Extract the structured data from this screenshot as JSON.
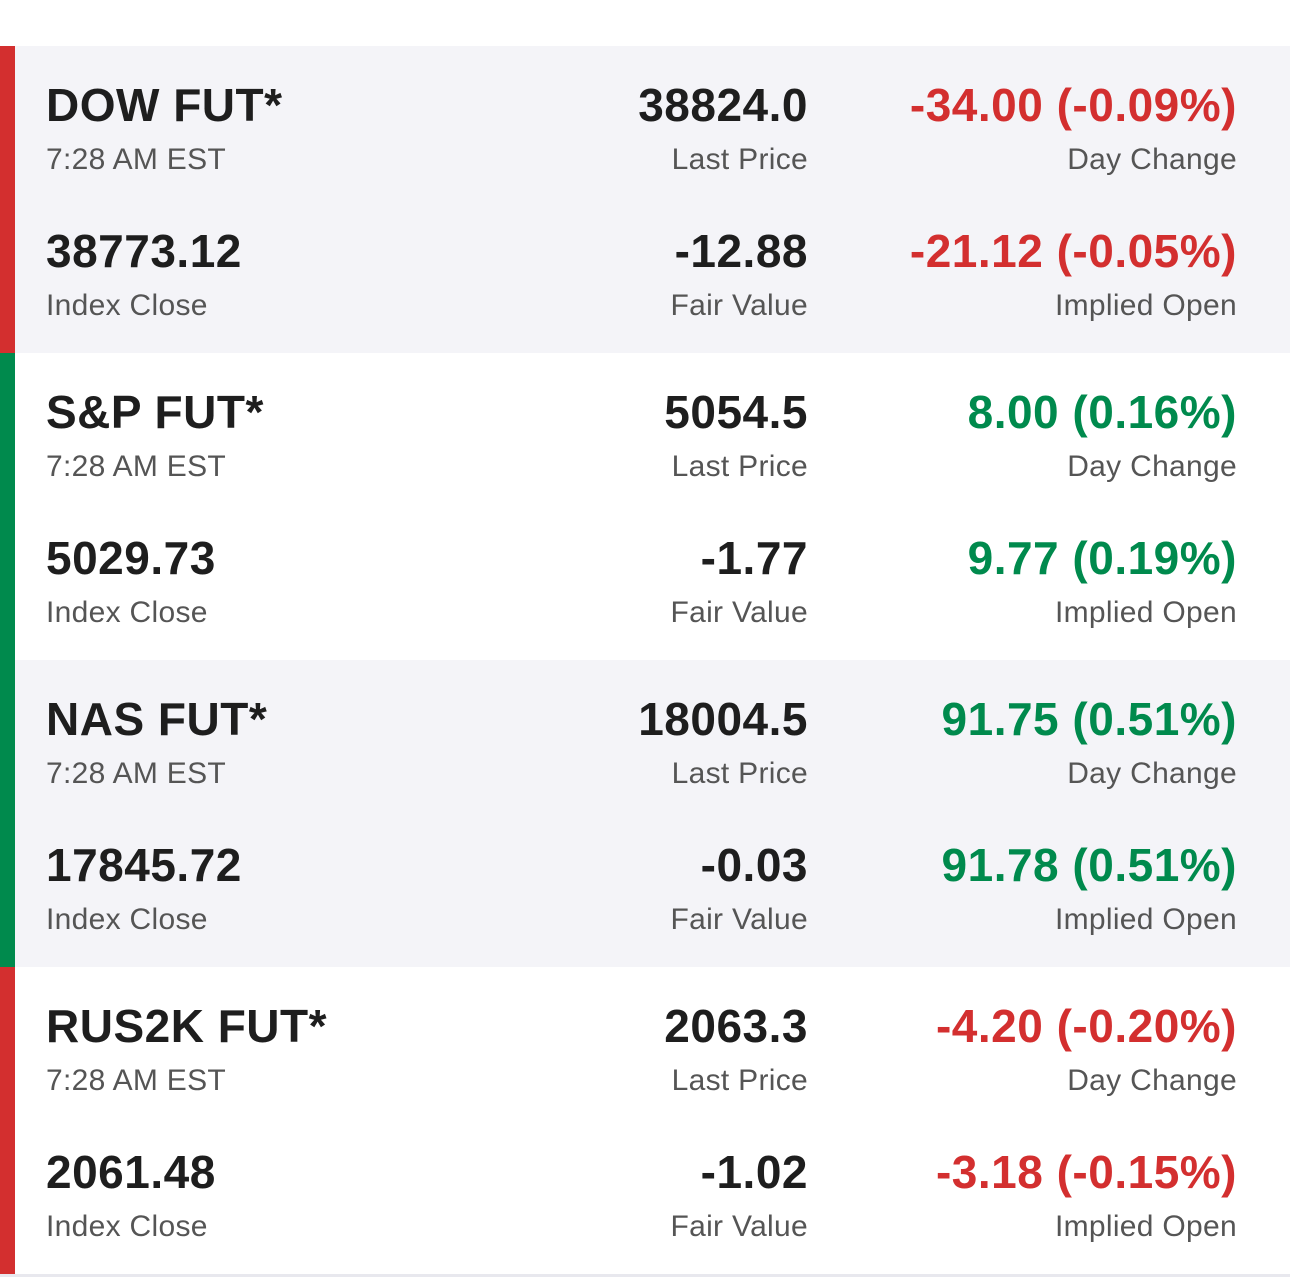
{
  "colors": {
    "negative": "#d32f2f",
    "positive": "#008a4d",
    "shaded_bg": "#f4f4f8"
  },
  "futures": [
    {
      "name": "DOW FUT*",
      "time": "7:28 AM EST",
      "last_price": "38824.0",
      "last_price_label": "Last Price",
      "day_change": "-34.00 (-0.09%)",
      "day_change_label": "Day Change",
      "index_close": "38773.12",
      "index_close_label": "Index Close",
      "fair_value": "-12.88",
      "fair_value_label": "Fair Value",
      "implied_open": "-21.12 (-0.05%)",
      "implied_open_label": "Implied Open",
      "direction": "down"
    },
    {
      "name": "S&P FUT*",
      "time": "7:28 AM EST",
      "last_price": "5054.5",
      "last_price_label": "Last Price",
      "day_change": "8.00 (0.16%)",
      "day_change_label": "Day Change",
      "index_close": "5029.73",
      "index_close_label": "Index Close",
      "fair_value": "-1.77",
      "fair_value_label": "Fair Value",
      "implied_open": "9.77 (0.19%)",
      "implied_open_label": "Implied Open",
      "direction": "up"
    },
    {
      "name": "NAS FUT*",
      "time": "7:28 AM EST",
      "last_price": "18004.5",
      "last_price_label": "Last Price",
      "day_change": "91.75 (0.51%)",
      "day_change_label": "Day Change",
      "index_close": "17845.72",
      "index_close_label": "Index Close",
      "fair_value": "-0.03",
      "fair_value_label": "Fair Value",
      "implied_open": "91.78 (0.51%)",
      "implied_open_label": "Implied Open",
      "direction": "up"
    },
    {
      "name": "RUS2K FUT*",
      "time": "7:28 AM EST",
      "last_price": "2063.3",
      "last_price_label": "Last Price",
      "day_change": "-4.20 (-0.20%)",
      "day_change_label": "Day Change",
      "index_close": "2061.48",
      "index_close_label": "Index Close",
      "fair_value": "-1.02",
      "fair_value_label": "Fair Value",
      "implied_open": "-3.18 (-0.15%)",
      "implied_open_label": "Implied Open",
      "direction": "down"
    }
  ]
}
